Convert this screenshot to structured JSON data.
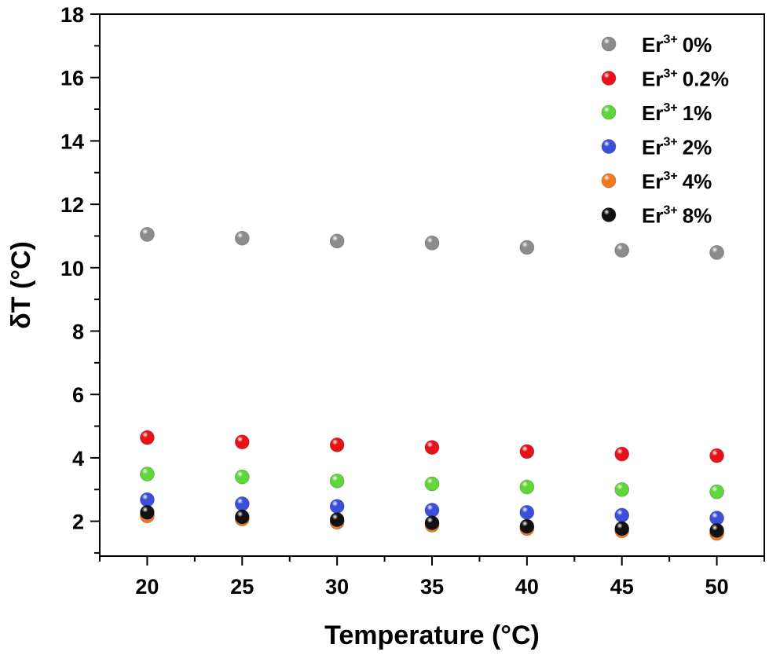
{
  "chart_data": {
    "type": "scatter",
    "xlabel": "Temperature (°C)",
    "ylabel": "δT (°C)",
    "xlim": [
      17.5,
      52.5
    ],
    "ylim": [
      0.9,
      18
    ],
    "x_ticks": [
      20,
      25,
      30,
      35,
      40,
      45,
      50
    ],
    "y_ticks": [
      2,
      4,
      6,
      8,
      10,
      12,
      14,
      16,
      18
    ],
    "grid": false,
    "legend_position": "top-right",
    "series": [
      {
        "name_base": "Er",
        "name_sup": "3+",
        "name_suffix": "0%",
        "color": "#8c8c8c",
        "x": [
          20,
          25,
          30,
          35,
          40,
          45,
          50
        ],
        "y": [
          11.05,
          10.93,
          10.84,
          10.78,
          10.64,
          10.55,
          10.48
        ]
      },
      {
        "name_base": "Er",
        "name_sup": "3+",
        "name_suffix": "0.2%",
        "color": "#e8131a",
        "x": [
          20,
          25,
          30,
          35,
          40,
          45,
          50
        ],
        "y": [
          4.64,
          4.5,
          4.41,
          4.33,
          4.2,
          4.12,
          4.07
        ]
      },
      {
        "name_base": "Er",
        "name_sup": "3+",
        "name_suffix": "1%",
        "color": "#5fd63a",
        "x": [
          20,
          25,
          30,
          35,
          40,
          45,
          50
        ],
        "y": [
          3.49,
          3.4,
          3.27,
          3.18,
          3.08,
          3.0,
          2.93
        ]
      },
      {
        "name_base": "Er",
        "name_sup": "3+",
        "name_suffix": "2%",
        "color": "#3b4fdb",
        "x": [
          20,
          25,
          30,
          35,
          40,
          45,
          50
        ],
        "y": [
          2.68,
          2.55,
          2.47,
          2.35,
          2.28,
          2.19,
          2.1
        ]
      },
      {
        "name_base": "Er",
        "name_sup": "3+",
        "name_suffix": "4%",
        "color": "#f07a20",
        "x": [
          20,
          25,
          30,
          35,
          40,
          45,
          50
        ],
        "y": [
          2.17,
          2.07,
          1.97,
          1.88,
          1.77,
          1.7,
          1.62
        ]
      },
      {
        "name_base": "Er",
        "name_sup": "3+",
        "name_suffix": "8%",
        "color": "#111111",
        "x": [
          20,
          25,
          30,
          35,
          40,
          45,
          50
        ],
        "y": [
          2.28,
          2.14,
          2.05,
          1.95,
          1.84,
          1.77,
          1.71
        ]
      }
    ]
  }
}
